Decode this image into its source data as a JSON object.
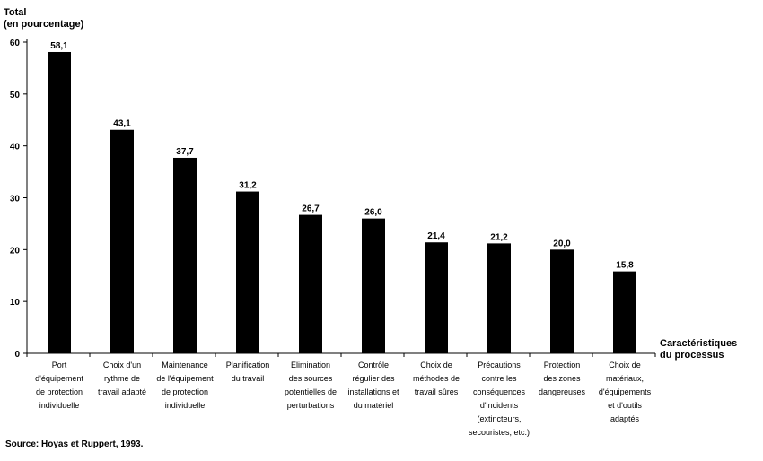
{
  "chart_data": {
    "type": "bar",
    "ylabel": [
      "Total",
      "(en pourcentage)"
    ],
    "xlabel": [
      "Caractéristiques",
      "du processus"
    ],
    "ylim": [
      0,
      60
    ],
    "yticks": [
      0,
      10,
      20,
      30,
      40,
      50,
      60
    ],
    "grid": false,
    "bar_color": "#000000",
    "categories": [
      [
        "Port",
        "d'équipement",
        "de protection",
        "individuelle"
      ],
      [
        "Choix d'un",
        "rythme de",
        "travail adapté"
      ],
      [
        "Maintenance",
        "de l'équipement",
        "de protection",
        "individuelle"
      ],
      [
        "Planification",
        "du travail"
      ],
      [
        "Elimination",
        "des sources",
        "potentielles de",
        "perturbations"
      ],
      [
        "Contrôle",
        "régulier des",
        "installations et",
        "du matériel"
      ],
      [
        "Choix de",
        "méthodes de",
        "travail sûres"
      ],
      [
        "Précautions",
        "contre les",
        "conséquences",
        "d'incidents",
        "(extincteurs,",
        "secouristes, etc.)"
      ],
      [
        "Protection",
        "des zones",
        "dangereuses"
      ],
      [
        "Choix de",
        "matériaux,",
        "d'équipements",
        "et d'outils",
        "adaptés"
      ]
    ],
    "values": [
      58.1,
      43.1,
      37.7,
      31.2,
      26.7,
      26.0,
      21.4,
      21.2,
      20.0,
      15.8
    ],
    "value_labels": [
      "58,1",
      "43,1",
      "37,7",
      "31,2",
      "26,7",
      "26,0",
      "21,4",
      "21,2",
      "20,0",
      "15,8"
    ]
  },
  "source": "Source: Hoyas et Ruppert, 1993."
}
